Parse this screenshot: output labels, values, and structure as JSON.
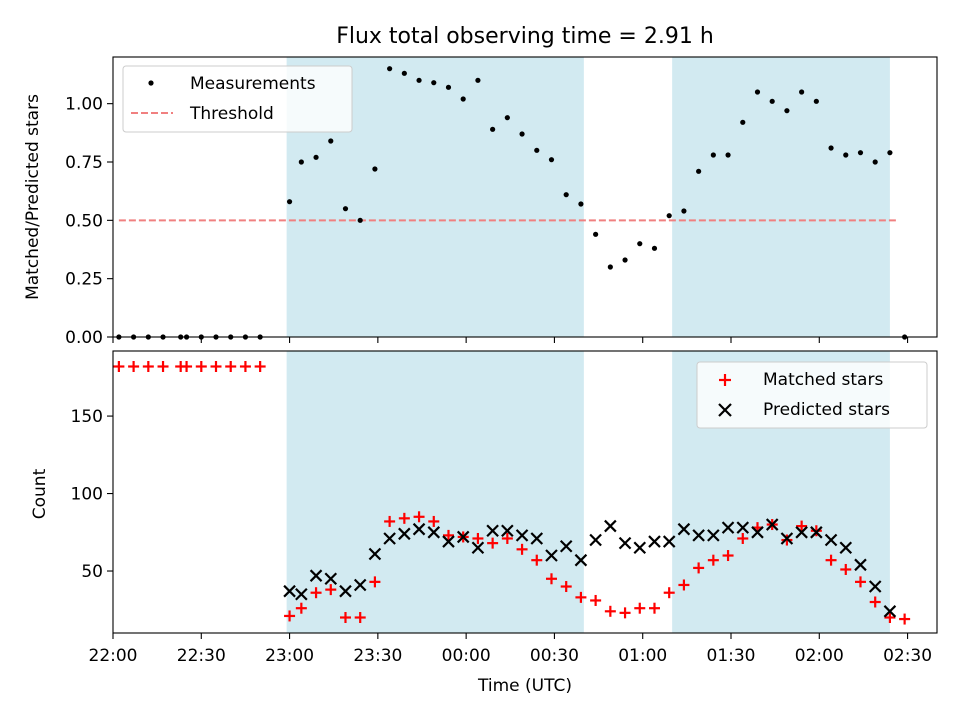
{
  "chart_data": [
    {
      "type": "scatter",
      "title": "Flux total observing time = 2.91 h",
      "ylabel": "Matched/Predicted stars",
      "ylim": [
        0,
        1.2
      ],
      "y_ticks": [
        "0.00",
        "0.25",
        "0.50",
        "0.75",
        "1.00"
      ],
      "shaded_intervals": [
        [
          "22:59",
          "00:40"
        ],
        [
          "01:10",
          "02:24"
        ]
      ],
      "legend": [
        "Measurements",
        "Threshold"
      ],
      "legend_position": "upper-left",
      "threshold": {
        "value": 0.5,
        "x_start": "22:02",
        "x_end": "02:27"
      },
      "series": [
        {
          "name": "Measurements",
          "points": [
            [
              "22:02",
              0
            ],
            [
              "22:07",
              0
            ],
            [
              "22:12",
              0
            ],
            [
              "22:17",
              0
            ],
            [
              "22:23",
              0
            ],
            [
              "22:25",
              0
            ],
            [
              "22:30",
              0
            ],
            [
              "22:35",
              0
            ],
            [
              "22:40",
              0
            ],
            [
              "22:45",
              0
            ],
            [
              "22:50",
              0
            ],
            [
              "23:00",
              0.58
            ],
            [
              "23:04",
              0.75
            ],
            [
              "23:09",
              0.77
            ],
            [
              "23:14",
              0.84
            ],
            [
              "23:19",
              0.55
            ],
            [
              "23:24",
              0.5
            ],
            [
              "23:29",
              0.72
            ],
            [
              "23:34",
              1.15
            ],
            [
              "23:39",
              1.13
            ],
            [
              "23:44",
              1.1
            ],
            [
              "23:49",
              1.09
            ],
            [
              "23:54",
              1.07
            ],
            [
              "23:59",
              1.02
            ],
            [
              "00:04",
              1.1
            ],
            [
              "00:09",
              0.89
            ],
            [
              "00:14",
              0.94
            ],
            [
              "00:19",
              0.87
            ],
            [
              "00:24",
              0.8
            ],
            [
              "00:29",
              0.76
            ],
            [
              "00:34",
              0.61
            ],
            [
              "00:39",
              0.57
            ],
            [
              "00:44",
              0.44
            ],
            [
              "00:49",
              0.3
            ],
            [
              "00:54",
              0.33
            ],
            [
              "00:59",
              0.4
            ],
            [
              "01:04",
              0.38
            ],
            [
              "01:09",
              0.52
            ],
            [
              "01:14",
              0.54
            ],
            [
              "01:19",
              0.71
            ],
            [
              "01:24",
              0.78
            ],
            [
              "01:29",
              0.78
            ],
            [
              "01:34",
              0.92
            ],
            [
              "01:39",
              1.05
            ],
            [
              "01:44",
              1.01
            ],
            [
              "01:49",
              0.97
            ],
            [
              "01:54",
              1.05
            ],
            [
              "01:59",
              1.01
            ],
            [
              "02:04",
              0.81
            ],
            [
              "02:09",
              0.78
            ],
            [
              "02:14",
              0.79
            ],
            [
              "02:19",
              0.75
            ],
            [
              "02:24",
              0.79
            ],
            [
              "02:29",
              0
            ]
          ]
        }
      ]
    },
    {
      "type": "scatter",
      "xlabel": "Time (UTC)",
      "ylabel": "Count",
      "ylim": [
        10,
        192
      ],
      "y_ticks": [
        "50",
        "100",
        "150"
      ],
      "x_ticks": [
        "22:00",
        "22:30",
        "23:00",
        "23:30",
        "00:00",
        "00:30",
        "01:00",
        "01:30",
        "02:00",
        "02:30"
      ],
      "shaded_intervals": [
        [
          "22:59",
          "00:40"
        ],
        [
          "01:10",
          "02:24"
        ]
      ],
      "legend": [
        "Matched stars",
        "Predicted stars"
      ],
      "legend_position": "upper-right",
      "series": [
        {
          "name": "Matched stars",
          "points": [
            [
              "22:02",
              182
            ],
            [
              "22:07",
              182
            ],
            [
              "22:12",
              182
            ],
            [
              "22:17",
              182
            ],
            [
              "22:23",
              182
            ],
            [
              "22:25",
              182
            ],
            [
              "22:30",
              182
            ],
            [
              "22:35",
              182
            ],
            [
              "22:40",
              182
            ],
            [
              "22:45",
              182
            ],
            [
              "22:50",
              182
            ],
            [
              "23:00",
              21
            ],
            [
              "23:04",
              26
            ],
            [
              "23:09",
              36
            ],
            [
              "23:14",
              38
            ],
            [
              "23:19",
              20
            ],
            [
              "23:24",
              20
            ],
            [
              "23:29",
              43
            ],
            [
              "23:34",
              82
            ],
            [
              "23:39",
              84
            ],
            [
              "23:44",
              85
            ],
            [
              "23:49",
              82
            ],
            [
              "23:54",
              73
            ],
            [
              "23:59",
              72
            ],
            [
              "00:04",
              71
            ],
            [
              "00:09",
              68
            ],
            [
              "00:14",
              71
            ],
            [
              "00:19",
              64
            ],
            [
              "00:24",
              57
            ],
            [
              "00:29",
              45
            ],
            [
              "00:34",
              40
            ],
            [
              "00:39",
              33
            ],
            [
              "00:44",
              31
            ],
            [
              "00:49",
              24
            ],
            [
              "00:54",
              23
            ],
            [
              "00:59",
              26
            ],
            [
              "01:04",
              26
            ],
            [
              "01:09",
              36
            ],
            [
              "01:14",
              41
            ],
            [
              "01:19",
              52
            ],
            [
              "01:24",
              57
            ],
            [
              "01:29",
              60
            ],
            [
              "01:34",
              71
            ],
            [
              "01:39",
              78
            ],
            [
              "01:44",
              80
            ],
            [
              "01:49",
              70
            ],
            [
              "01:54",
              79
            ],
            [
              "01:59",
              76
            ],
            [
              "02:04",
              57
            ],
            [
              "02:09",
              51
            ],
            [
              "02:14",
              43
            ],
            [
              "02:19",
              30
            ],
            [
              "02:24",
              20
            ],
            [
              "02:29",
              19
            ]
          ]
        },
        {
          "name": "Predicted stars",
          "points": [
            [
              "23:00",
              37
            ],
            [
              "23:04",
              35
            ],
            [
              "23:09",
              47
            ],
            [
              "23:14",
              45
            ],
            [
              "23:19",
              37
            ],
            [
              "23:24",
              41
            ],
            [
              "23:29",
              61
            ],
            [
              "23:34",
              71
            ],
            [
              "23:39",
              74
            ],
            [
              "23:44",
              77
            ],
            [
              "23:49",
              75
            ],
            [
              "23:54",
              69
            ],
            [
              "23:59",
              72
            ],
            [
              "00:04",
              65
            ],
            [
              "00:09",
              76
            ],
            [
              "00:14",
              76
            ],
            [
              "00:19",
              73
            ],
            [
              "00:24",
              71
            ],
            [
              "00:29",
              60
            ],
            [
              "00:34",
              66
            ],
            [
              "00:39",
              57
            ],
            [
              "00:44",
              70
            ],
            [
              "00:49",
              79
            ],
            [
              "00:54",
              68
            ],
            [
              "00:59",
              65
            ],
            [
              "01:04",
              69
            ],
            [
              "01:09",
              69
            ],
            [
              "01:14",
              77
            ],
            [
              "01:19",
              73
            ],
            [
              "01:24",
              73
            ],
            [
              "01:29",
              78
            ],
            [
              "01:34",
              78
            ],
            [
              "01:39",
              75
            ],
            [
              "01:44",
              80
            ],
            [
              "01:49",
              71
            ],
            [
              "01:54",
              75
            ],
            [
              "01:59",
              75
            ],
            [
              "02:04",
              70
            ],
            [
              "02:09",
              65
            ],
            [
              "02:14",
              54
            ],
            [
              "02:19",
              40
            ],
            [
              "02:24",
              24
            ]
          ]
        }
      ]
    }
  ],
  "colors": {
    "shade": "#add8e6",
    "shade_alpha": 0.55,
    "measurements": "#000000",
    "threshold": "#f08080",
    "matched": "#ff0000",
    "predicted": "#000000"
  }
}
